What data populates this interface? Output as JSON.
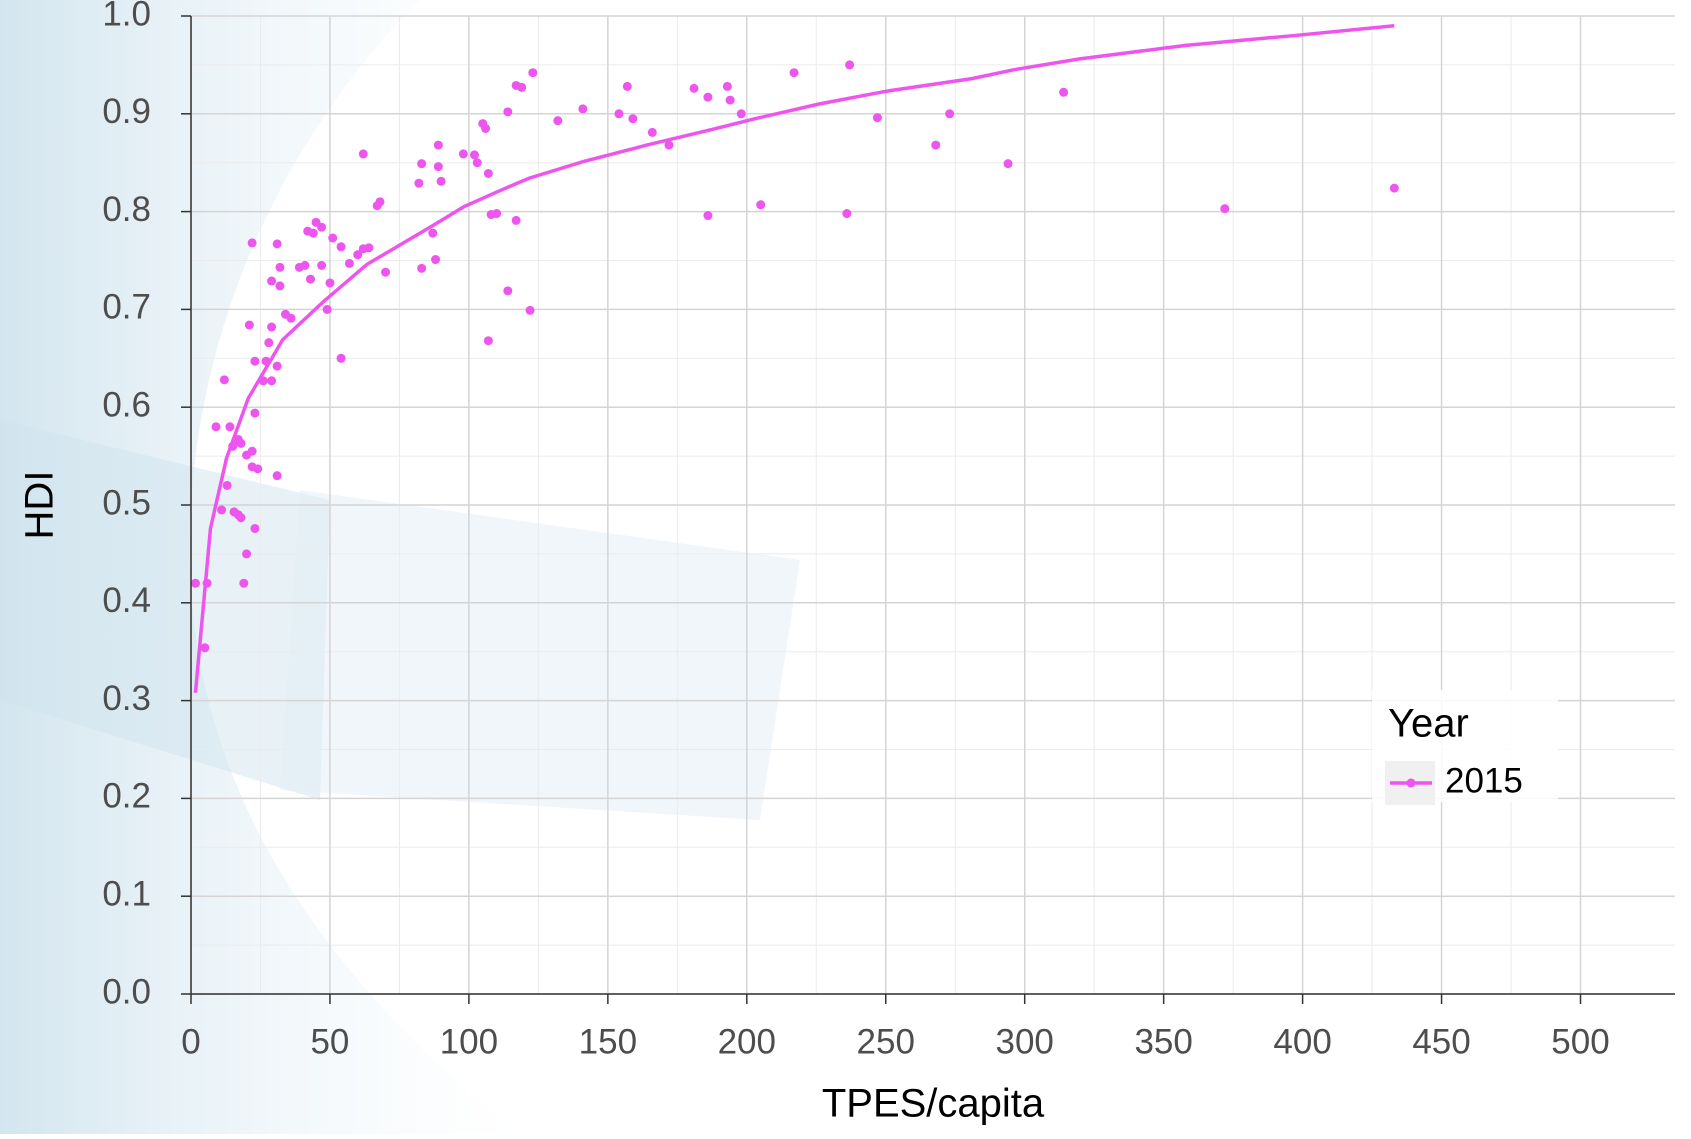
{
  "chart_data": {
    "type": "scatter",
    "x_label": "TPES/capita",
    "y_label": "HDI",
    "legend_title": "Year",
    "legend_position": "right",
    "grid": true,
    "minor_grid": true,
    "xlim": [
      0,
      534
    ],
    "ylim": [
      0,
      1
    ],
    "xticks": [
      0,
      50,
      100,
      150,
      200,
      250,
      300,
      350,
      400,
      450,
      500
    ],
    "yticks": [
      {
        "value": 0,
        "label": "0.0"
      },
      0.1,
      0.2,
      0.3,
      0.4,
      0.5,
      0.6,
      0.7,
      0.8,
      0.9,
      {
        "value": 1,
        "label": "1.0"
      }
    ],
    "series": [
      {
        "name": "2015",
        "color": "#ee55ee",
        "x": [
          1.6,
          5.8,
          5,
          9,
          12,
          11,
          13,
          14,
          15,
          16,
          17,
          18,
          15.5,
          17,
          18,
          19,
          20,
          20,
          21,
          22,
          22,
          22,
          23,
          23,
          24,
          23,
          26,
          27,
          28,
          29,
          29,
          29,
          31,
          31,
          31,
          32,
          32,
          34,
          36,
          39,
          41,
          43,
          42,
          44,
          45,
          47,
          47,
          49,
          50,
          51,
          54,
          54,
          57,
          60,
          62,
          62,
          64,
          67,
          68,
          70,
          82,
          83,
          83,
          87,
          88,
          89,
          89,
          90,
          98,
          102,
          103,
          105,
          106,
          107,
          107,
          108,
          110,
          114,
          114,
          117,
          119,
          117,
          122,
          123,
          132,
          141,
          154,
          157,
          159,
          166,
          172,
          181,
          186,
          186,
          193,
          194,
          198,
          205,
          217,
          236,
          237,
          247,
          268,
          273,
          294,
          314,
          372,
          433
        ],
        "values": [
          0.42,
          0.42,
          0.354,
          0.58,
          0.628,
          0.495,
          0.52,
          0.58,
          0.56,
          0.565,
          0.567,
          0.563,
          0.493,
          0.49,
          0.487,
          0.42,
          0.45,
          0.551,
          0.684,
          0.768,
          0.555,
          0.539,
          0.647,
          0.594,
          0.537,
          0.476,
          0.627,
          0.647,
          0.666,
          0.682,
          0.627,
          0.729,
          0.767,
          0.53,
          0.642,
          0.724,
          0.743,
          0.695,
          0.691,
          0.743,
          0.745,
          0.731,
          0.78,
          0.778,
          0.789,
          0.784,
          0.745,
          0.7,
          0.727,
          0.773,
          0.65,
          0.764,
          0.747,
          0.756,
          0.859,
          0.762,
          0.763,
          0.806,
          0.81,
          0.738,
          0.829,
          0.849,
          0.742,
          0.778,
          0.751,
          0.846,
          0.868,
          0.831,
          0.859,
          0.858,
          0.85,
          0.89,
          0.885,
          0.839,
          0.668,
          0.797,
          0.798,
          0.719,
          0.902,
          0.929,
          0.927,
          0.791,
          0.699,
          0.942,
          0.893,
          0.905,
          0.9,
          0.928,
          0.895,
          0.881,
          0.868,
          0.926,
          0.917,
          0.796,
          0.928,
          0.914,
          0.9,
          0.807,
          0.942,
          0.798,
          0.95,
          0.896,
          0.868,
          0.9,
          0.849,
          0.922,
          0.803,
          0.824
        ],
        "fit": {
          "x": [
            1.6,
            7,
            12.8,
            20.6,
            33,
            47.7,
            63.3,
            86.6,
            98.2,
            110,
            121.5,
            141,
            164,
            187.5,
            203,
            226,
            250,
            281,
            296,
            319.5,
            358,
            397,
            433
          ],
          "values": [
            0.308,
            0.476,
            0.548,
            0.609,
            0.669,
            0.708,
            0.746,
            0.785,
            0.805,
            0.82,
            0.834,
            0.851,
            0.868,
            0.884,
            0.895,
            0.91,
            0.923,
            0.936,
            0.945,
            0.956,
            0.97,
            0.98,
            0.99
          ]
        }
      }
    ]
  }
}
